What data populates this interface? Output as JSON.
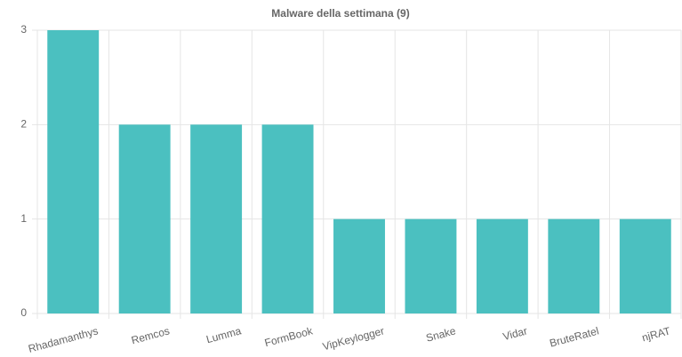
{
  "chart_data": {
    "type": "bar",
    "title": "Malware della settimana (9)",
    "categories": [
      "Rhadamanthys",
      "Remcos",
      "Lumma",
      "FormBook",
      "VipKeylogger",
      "Snake",
      "Vidar",
      "BruteRatel",
      "njRAT"
    ],
    "values": [
      3,
      2,
      2,
      2,
      1,
      1,
      1,
      1,
      1
    ],
    "color": "#4bc0c0",
    "ylim": [
      0,
      3
    ],
    "yticks": [
      0,
      1,
      2,
      3
    ],
    "grid": true
  }
}
